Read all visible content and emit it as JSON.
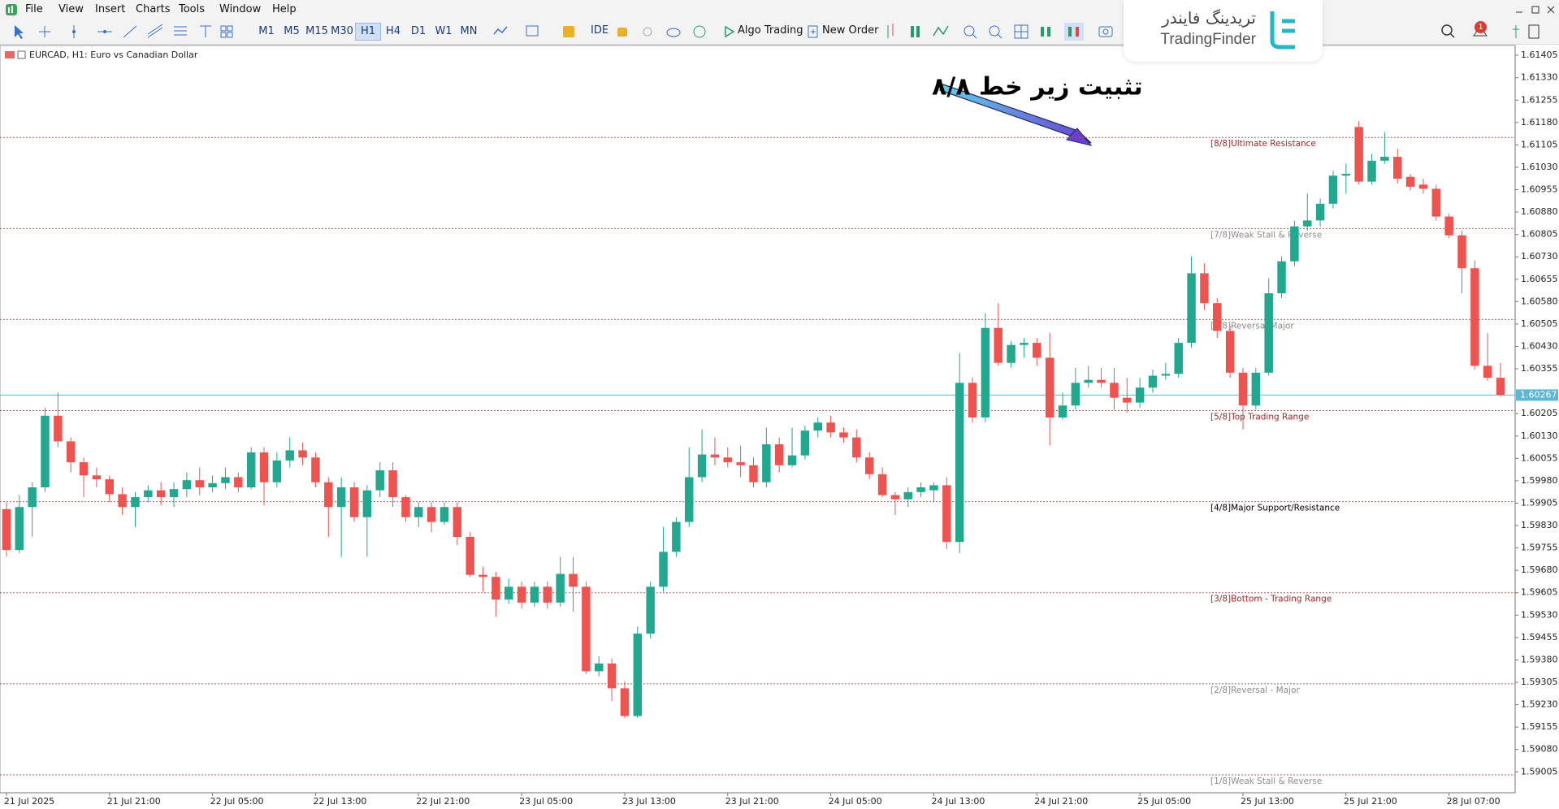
{
  "menu": [
    "File",
    "View",
    "Insert",
    "Charts",
    "Tools",
    "Window",
    "Help"
  ],
  "toolbar": {
    "timeframes": [
      "M1",
      "M5",
      "M15",
      "M30",
      "H1",
      "H4",
      "D1",
      "W1",
      "MN"
    ],
    "ide": "IDE",
    "algo_trading": "Algo Trading",
    "new_order": "New Order",
    "notifications": 1
  },
  "logo": {
    "persian": "تریدینگ فایندر",
    "latin": "TradingFinder"
  },
  "chart_data": {
    "type": "candlestick",
    "title": "EURCAD, H1:  Euro vs Canadian Dollar",
    "annotation": "تثبیت زیر خط ۸/۸",
    "up_color": "#22a88e",
    "down_color": "#ef5350",
    "categories": [
      "21 Jul 2025",
      null,
      null,
      null,
      null,
      null,
      null,
      null,
      "21 Jul 21:00",
      null,
      null,
      null,
      null,
      null,
      null,
      null,
      "22 Jul 05:00",
      null,
      null,
      null,
      null,
      null,
      null,
      null,
      "22 Jul 13:00",
      null,
      null,
      null,
      null,
      null,
      null,
      null,
      "22 Jul 21:00",
      null,
      null,
      null,
      null,
      null,
      null,
      null,
      "23 Jul 05:00",
      null,
      null,
      null,
      null,
      null,
      null,
      null,
      "23 Jul 13:00",
      null,
      null,
      null,
      null,
      null,
      null,
      null,
      "23 Jul 21:00",
      null,
      null,
      null,
      null,
      null,
      null,
      null,
      "24 Jul 05:00",
      null,
      null,
      null,
      null,
      null,
      null,
      null,
      "24 Jul 13:00",
      null,
      null,
      null,
      null,
      null,
      null,
      null,
      "24 Jul 21:00",
      null,
      null,
      null,
      null,
      null,
      null,
      null,
      "25 Jul 05:00",
      null,
      null,
      null,
      null,
      null,
      null,
      null,
      "25 Jul 13:00",
      null,
      null,
      null,
      null,
      null,
      null,
      null,
      "25 Jul 21:00",
      null,
      null,
      null,
      null,
      null,
      null,
      null,
      "28 Jul 07:00",
      null,
      null,
      null,
      null
    ],
    "open": [
      1.59885,
      1.59748,
      1.59892,
      1.59958,
      1.60198,
      1.60112,
      1.60042,
      1.59998,
      1.59985,
      1.59935,
      1.59892,
      1.59925,
      1.59948,
      1.59925,
      1.59952,
      1.59982,
      1.59958,
      1.59972,
      1.59992,
      1.59958,
      1.60075,
      1.59975,
      1.60048,
      1.60082,
      1.60058,
      1.59975,
      1.59892,
      1.59958,
      1.59858,
      1.59948,
      1.60015,
      1.59925,
      1.59858,
      1.59892,
      1.59842,
      1.59892,
      1.59792,
      1.59665,
      1.59658,
      1.59582,
      1.59625,
      1.59572,
      1.59625,
      1.59572,
      1.59668,
      1.59625,
      1.59342,
      1.59368,
      1.59285,
      1.59192,
      1.59468,
      1.59625,
      1.59742,
      1.59842,
      1.59992,
      1.60068,
      1.60058,
      1.60042,
      1.60032,
      1.59975,
      1.60102,
      1.60032,
      1.60065,
      1.60148,
      1.60175,
      1.60142,
      1.60125,
      1.60058,
      1.60002,
      1.59932,
      1.59918,
      1.59942,
      1.59948,
      1.59965,
      1.59775,
      1.60308,
      1.60192,
      1.60492,
      1.60375,
      1.60435,
      1.60442,
      1.60392,
      1.60192,
      1.60232,
      1.60308,
      1.60318,
      1.60308,
      1.60258,
      1.60242,
      1.60292,
      1.60332,
      1.60338,
      1.60442,
      1.60675,
      1.60575,
      1.60482,
      1.60342,
      1.60232,
      1.60342,
      1.60608,
      1.60715,
      1.60832,
      1.60852,
      1.60908,
      1.61002,
      1.61165,
      1.60982,
      1.61052,
      1.61065,
      1.60998,
      1.60972,
      1.60958,
      1.60865,
      1.60802,
      1.60692,
      1.60365,
      1.60325
    ],
    "high": [
      1.59908,
      1.59932,
      1.59975,
      1.60225,
      1.60275,
      1.60125,
      1.60058,
      1.60025,
      1.59998,
      1.59958,
      1.59942,
      1.59965,
      1.59975,
      1.59975,
      1.60008,
      1.60025,
      1.59998,
      1.60025,
      1.60008,
      1.60092,
      1.60092,
      1.60075,
      1.60125,
      1.60108,
      1.60075,
      1.59992,
      1.59992,
      1.59975,
      1.59965,
      1.60042,
      1.60042,
      1.59932,
      1.59908,
      1.59908,
      1.59908,
      1.59908,
      1.59808,
      1.59692,
      1.59675,
      1.59652,
      1.59642,
      1.59642,
      1.59642,
      1.59725,
      1.59725,
      1.59642,
      1.59392,
      1.59385,
      1.59308,
      1.59492,
      1.59642,
      1.59825,
      1.59858,
      1.60092,
      1.60152,
      1.60125,
      1.60092,
      1.60098,
      1.60058,
      1.60158,
      1.60125,
      1.60158,
      1.60165,
      1.60192,
      1.60198,
      1.60158,
      1.60152,
      1.60075,
      1.60025,
      1.59942,
      1.59958,
      1.59975,
      1.59975,
      1.59992,
      1.60408,
      1.60325,
      1.60542,
      1.60575,
      1.60448,
      1.60458,
      1.60458,
      1.60475,
      1.60275,
      1.60358,
      1.60365,
      1.60358,
      1.60358,
      1.60325,
      1.60325,
      1.60352,
      1.60375,
      1.60458,
      1.60732,
      1.60708,
      1.60592,
      1.60498,
      1.60358,
      1.60358,
      1.60658,
      1.60732,
      1.60852,
      1.60942,
      1.60925,
      1.61018,
      1.61042,
      1.61185,
      1.61075,
      1.61148,
      1.61092,
      1.61008,
      1.60992,
      1.60972,
      1.60875,
      1.60818,
      1.60718,
      1.60475,
      1.60375
    ],
    "low": [
      1.59725,
      1.59738,
      1.59792,
      1.59942,
      1.60092,
      1.60008,
      1.59925,
      1.59958,
      1.59908,
      1.59865,
      1.59825,
      1.59908,
      1.59898,
      1.59892,
      1.59925,
      1.59932,
      1.59942,
      1.59952,
      1.59942,
      1.59952,
      1.59898,
      1.59958,
      1.60025,
      1.60032,
      1.59958,
      1.59792,
      1.59725,
      1.59842,
      1.59725,
      1.59925,
      1.59892,
      1.59842,
      1.59825,
      1.59808,
      1.59832,
      1.59765,
      1.59658,
      1.59608,
      1.59525,
      1.59568,
      1.59552,
      1.59558,
      1.59552,
      1.59558,
      1.59542,
      1.59332,
      1.59325,
      1.59242,
      1.59185,
      1.59185,
      1.59452,
      1.59608,
      1.59725,
      1.59825,
      1.59975,
      1.60032,
      1.60025,
      1.59992,
      1.59958,
      1.59958,
      1.60008,
      1.60025,
      1.60052,
      1.60125,
      1.60125,
      1.60108,
      1.60042,
      1.59985,
      1.59925,
      1.59865,
      1.59892,
      1.59925,
      1.59908,
      1.59752,
      1.59738,
      1.60175,
      1.60175,
      1.60365,
      1.60358,
      1.60392,
      1.60365,
      1.60098,
      1.60185,
      1.60218,
      1.60292,
      1.60292,
      1.60218,
      1.60208,
      1.60225,
      1.60275,
      1.60318,
      1.60325,
      1.60425,
      1.60552,
      1.60458,
      1.60325,
      1.60152,
      1.60218,
      1.60332,
      1.60592,
      1.60698,
      1.60818,
      1.60832,
      1.60892,
      1.60942,
      1.60972,
      1.60972,
      1.61042,
      1.60975,
      1.60952,
      1.60942,
      1.60852,
      1.60792,
      1.60608,
      1.60352,
      1.60315,
      1.60262
    ],
    "close": [
      1.59748,
      1.59892,
      1.59958,
      1.60198,
      1.60112,
      1.60042,
      1.59998,
      1.59985,
      1.59935,
      1.59892,
      1.59925,
      1.59948,
      1.59925,
      1.59952,
      1.59982,
      1.59958,
      1.59972,
      1.59992,
      1.59958,
      1.60075,
      1.59975,
      1.60048,
      1.60082,
      1.60058,
      1.59975,
      1.59892,
      1.59958,
      1.59858,
      1.59948,
      1.60015,
      1.59925,
      1.59858,
      1.59892,
      1.59842,
      1.59892,
      1.59792,
      1.59665,
      1.59658,
      1.59582,
      1.59625,
      1.59572,
      1.59625,
      1.59572,
      1.59668,
      1.59625,
      1.59342,
      1.59368,
      1.59285,
      1.59192,
      1.59468,
      1.59625,
      1.59742,
      1.59842,
      1.59992,
      1.60068,
      1.60058,
      1.60042,
      1.60032,
      1.59975,
      1.60102,
      1.60032,
      1.60065,
      1.60148,
      1.60175,
      1.60142,
      1.60125,
      1.60058,
      1.60002,
      1.59932,
      1.59918,
      1.59942,
      1.59958,
      1.59965,
      1.59775,
      1.60308,
      1.60192,
      1.60492,
      1.60375,
      1.60435,
      1.60442,
      1.60392,
      1.60192,
      1.60232,
      1.60308,
      1.60318,
      1.60308,
      1.60258,
      1.60242,
      1.60292,
      1.60332,
      1.60338,
      1.60442,
      1.60675,
      1.60575,
      1.60482,
      1.60342,
      1.60232,
      1.60342,
      1.60608,
      1.60715,
      1.60832,
      1.60852,
      1.60908,
      1.61002,
      1.61008,
      1.60982,
      1.61052,
      1.61065,
      1.60992,
      1.60965,
      1.60958,
      1.60865,
      1.60802,
      1.60692,
      1.60365,
      1.60325,
      1.60268
    ],
    "current_price": 1.60267,
    "current_price_color": "#5bb6d8",
    "levels": [
      {
        "label": "[8/8]Ultimate Resistance",
        "value": 1.6113,
        "color": "#a0282a"
      },
      {
        "label": "[7/8]Weak Stall & Reverse",
        "value": 1.60825,
        "color": "#8c8c8c"
      },
      {
        "label": "[6/8]Reversal Major",
        "value": 1.6052,
        "color": "#8c8c8c"
      },
      {
        "label": "[5/8]Top Trading Range",
        "value": 1.60215,
        "color": "#a0282a"
      },
      {
        "label": "[4/8]Major Support/Resistance",
        "value": 1.5991,
        "color": "#000000"
      },
      {
        "label": "[3/8]Bottom - Trading Range",
        "value": 1.59605,
        "color": "#a0282a"
      },
      {
        "label": "[2/8]Reversal - Major",
        "value": 1.593,
        "color": "#8c8c8c"
      },
      {
        "label": "[1/8]Weak Stall & Reverse",
        "value": 1.58995,
        "color": "#8c8c8c"
      }
    ],
    "ylim": [
      1.58935,
      1.61438
    ],
    "yticks": [
      1.61405,
      {
        "value": 1.6133,
        "label": "1.61330"
      },
      1.61255,
      {
        "value": 1.6118,
        "label": "1.61180"
      },
      1.61105,
      {
        "value": 1.6103,
        "label": "1.61030"
      },
      1.60955,
      {
        "value": 1.6088,
        "label": "1.60880"
      },
      1.60805,
      {
        "value": 1.6073,
        "label": "1.60730"
      },
      1.60655,
      {
        "value": 1.6058,
        "label": "1.60580"
      },
      1.60505,
      {
        "value": 1.6043,
        "label": "1.60430"
      },
      1.60355,
      1.60205,
      {
        "value": 1.6013,
        "label": "1.60130"
      },
      1.60055,
      {
        "value": 1.5998,
        "label": "1.59980"
      },
      1.59905,
      {
        "value": 1.5983,
        "label": "1.59830"
      },
      1.59755,
      {
        "value": 1.5968,
        "label": "1.59680"
      },
      1.59605,
      {
        "value": 1.5953,
        "label": "1.59530"
      },
      1.59455,
      {
        "value": 1.5938,
        "label": "1.59380"
      },
      1.59305,
      {
        "value": 1.5923,
        "label": "1.59230"
      },
      1.59155,
      {
        "value": 1.5908,
        "label": "1.59080"
      },
      1.59005
    ],
    "grid": false
  }
}
